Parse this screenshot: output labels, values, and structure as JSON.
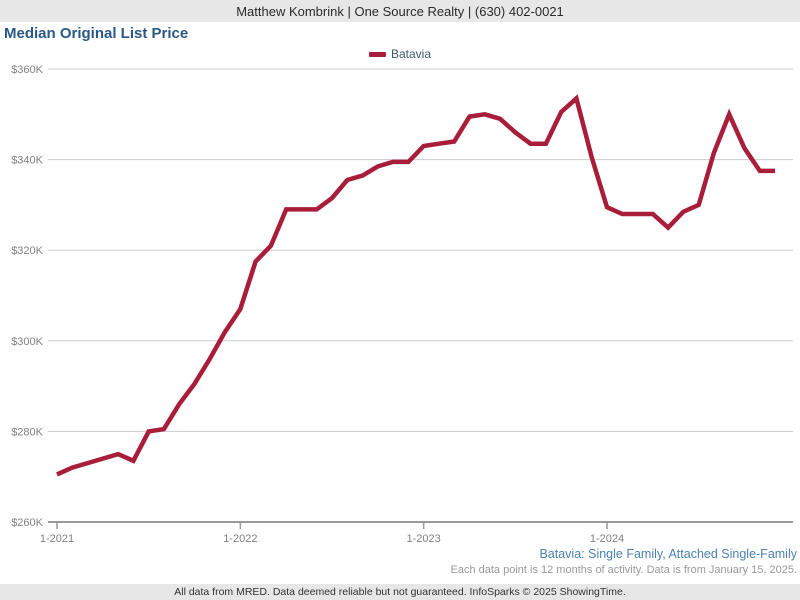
{
  "header": {
    "agent_info": "Matthew Kombrink | One Source Realty | (630) 402-0021"
  },
  "title": "Median Original List Price",
  "legend": {
    "label": "Batavia",
    "color": "#a81d39"
  },
  "chart_data": {
    "type": "line",
    "title": "Median Original List Price",
    "x": [
      "1-2021",
      "2-2021",
      "3-2021",
      "4-2021",
      "5-2021",
      "6-2021",
      "7-2021",
      "8-2021",
      "9-2021",
      "10-2021",
      "11-2021",
      "12-2021",
      "1-2022",
      "2-2022",
      "3-2022",
      "4-2022",
      "5-2022",
      "6-2022",
      "7-2022",
      "8-2022",
      "9-2022",
      "10-2022",
      "11-2022",
      "12-2022",
      "1-2023",
      "2-2023",
      "3-2023",
      "4-2023",
      "5-2023",
      "6-2023",
      "7-2023",
      "8-2023",
      "9-2023",
      "10-2023",
      "11-2023",
      "12-2023",
      "1-2024",
      "2-2024",
      "3-2024",
      "4-2024",
      "5-2024",
      "6-2024",
      "7-2024",
      "8-2024",
      "9-2024",
      "10-2024",
      "11-2024",
      "12-2024"
    ],
    "series": [
      {
        "name": "Batavia",
        "color": "#a81d39",
        "values": [
          270500,
          272000,
          273000,
          274000,
          275000,
          273500,
          280000,
          280500,
          286000,
          290500,
          296000,
          302000,
          307000,
          317500,
          321000,
          329000,
          329000,
          329000,
          331500,
          335500,
          336500,
          338500,
          339500,
          339500,
          343000,
          343500,
          344000,
          349500,
          350000,
          349000,
          346000,
          343500,
          343500,
          350500,
          353500,
          340500,
          329500,
          328000,
          328000,
          328000,
          325000,
          328500,
          330000,
          341500,
          350000,
          342500,
          337500,
          337500
        ]
      }
    ],
    "xlabel": "",
    "ylabel": "",
    "ylim": [
      260000,
      360000
    ],
    "grid": "horizontal",
    "legend_position": "top-center",
    "y_axis": {
      "tick_values": [
        360000,
        340000,
        320000,
        300000,
        280000,
        260000
      ],
      "tick_labels": [
        "$360K",
        "$340K",
        "$320K",
        "$300K",
        "$280K",
        "$260K"
      ]
    },
    "x_axis": {
      "ticks": [
        {
          "label": "1-2021",
          "month_index": 0
        },
        {
          "label": "1-2022",
          "month_index": 12
        },
        {
          "label": "1-2023",
          "month_index": 24
        },
        {
          "label": "1-2024",
          "month_index": 36
        }
      ]
    }
  },
  "footnotes": {
    "scope_line": "Batavia: Single Family, Attached Single-Family",
    "data_note": "Each data point is 12 months of activity. Data is from January 15, 2025."
  },
  "footer": {
    "disclaimer": "All data from MRED. Data deemed reliable but not guaranteed. InfoSparks © 2025 ShowingTime."
  },
  "colors": {
    "line": "#a81d39",
    "gridline": "#cccccc",
    "axis": "#999999",
    "axis_text": "#808080",
    "title_text": "#2a5886",
    "bar_bg": "#e7e7e7"
  }
}
